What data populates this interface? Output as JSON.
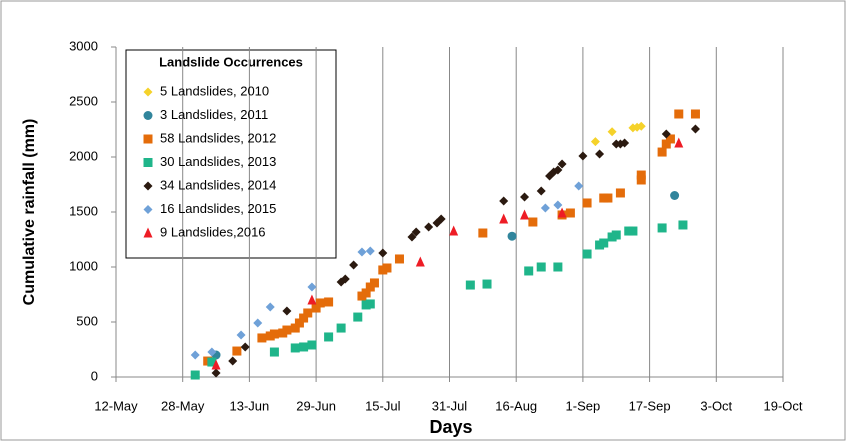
{
  "chart_data": {
    "type": "scatter",
    "x_label": "Days",
    "y_label": "Cumulative rainfall (mm)",
    "legend_title": "Landslide Occurrences",
    "xlim": [
      132,
      292
    ],
    "xticks": [
      {
        "value": 132,
        "label": "12-May"
      },
      {
        "value": 148,
        "label": "28-May"
      },
      {
        "value": 164,
        "label": "13-Jun"
      },
      {
        "value": 180,
        "label": "29-Jun"
      },
      {
        "value": 196,
        "label": "15-Jul"
      },
      {
        "value": 212,
        "label": "31-Jul"
      },
      {
        "value": 228,
        "label": "16-Aug"
      },
      {
        "value": 244,
        "label": "1-Sep"
      },
      {
        "value": 260,
        "label": "17-Sep"
      },
      {
        "value": 276,
        "label": "3-Oct"
      },
      {
        "value": 292,
        "label": "19-Oct"
      }
    ],
    "ylim": [
      0,
      3000
    ],
    "yticks": [
      0,
      500,
      1000,
      1500,
      2000,
      2500,
      3000
    ],
    "grid": "x",
    "legend": "upper left",
    "series": [
      {
        "name": "5 Landslides, 2010",
        "color": "#f5d22a",
        "marker": "diamond",
        "x": [
          247,
          251,
          256,
          257,
          258
        ],
        "values": [
          2140,
          2230,
          2265,
          2270,
          2280
        ]
      },
      {
        "name": "3 Landslides, 2011",
        "color": "#31859c",
        "marker": "circle",
        "x": [
          156,
          227,
          266
        ],
        "values": [
          200,
          1280,
          1650
        ]
      },
      {
        "name": "58 Landslides, 2012",
        "color": "#e46c0a",
        "marker": "square",
        "x": [
          154,
          161,
          167,
          169,
          170,
          172,
          173,
          175,
          176,
          177,
          178,
          180,
          181,
          183,
          191,
          192,
          193,
          194,
          196,
          197,
          200,
          220,
          232,
          239,
          241,
          245,
          249,
          250,
          253,
          258,
          258,
          263,
          264,
          265,
          267,
          271
        ],
        "values": [
          145,
          236,
          355,
          373,
          391,
          400,
          427,
          445,
          491,
          536,
          582,
          627,
          673,
          682,
          736,
          764,
          818,
          855,
          973,
          991,
          1073,
          1309,
          1409,
          1473,
          1491,
          1582,
          1627,
          1627,
          1673,
          1791,
          1836,
          2045,
          2118,
          2164,
          2391,
          2391
        ]
      },
      {
        "name": "30 Landslides, 2013",
        "color": "#1fb58a",
        "marker": "square",
        "x": [
          151,
          155,
          170,
          175,
          177,
          179,
          183,
          186,
          190,
          192,
          193,
          217,
          221,
          231,
          234,
          238,
          245,
          248,
          249,
          251,
          252,
          255,
          256,
          263,
          268
        ],
        "values": [
          18,
          136,
          227,
          264,
          273,
          291,
          364,
          445,
          545,
          655,
          664,
          836,
          845,
          964,
          1000,
          1000,
          1118,
          1200,
          1218,
          1273,
          1291,
          1327,
          1327,
          1355,
          1382
        ]
      },
      {
        "name": "34 Landslides, 2014",
        "color": "#2b1a10",
        "marker": "diamond",
        "x": [
          156,
          160,
          163,
          173,
          186,
          187,
          189,
          196,
          203,
          204,
          207,
          209,
          210,
          225,
          230,
          234,
          236,
          237,
          238,
          239,
          244,
          248,
          252,
          253,
          254,
          264,
          271
        ],
        "values": [
          36,
          145,
          273,
          600,
          864,
          891,
          1018,
          1127,
          1273,
          1318,
          1364,
          1400,
          1436,
          1600,
          1636,
          1691,
          1827,
          1864,
          1882,
          1936,
          2009,
          2027,
          2118,
          2118,
          2127,
          2209,
          2255
        ]
      },
      {
        "name": "16 Landslides, 2015",
        "color": "#6fa1d8",
        "marker": "diamond",
        "x": [
          151,
          155,
          162,
          166,
          169,
          179,
          191,
          193,
          235,
          238,
          243
        ],
        "values": [
          200,
          227,
          382,
          491,
          636,
          818,
          1136,
          1145,
          1536,
          1564,
          1736
        ]
      },
      {
        "name": "9 Landslides,2016",
        "color": "#ee1c25",
        "marker": "triangle",
        "x": [
          156,
          179,
          205,
          213,
          225,
          230,
          239,
          267
        ],
        "values": [
          109,
          700,
          1045,
          1327,
          1436,
          1473,
          1491,
          2127
        ]
      }
    ]
  }
}
